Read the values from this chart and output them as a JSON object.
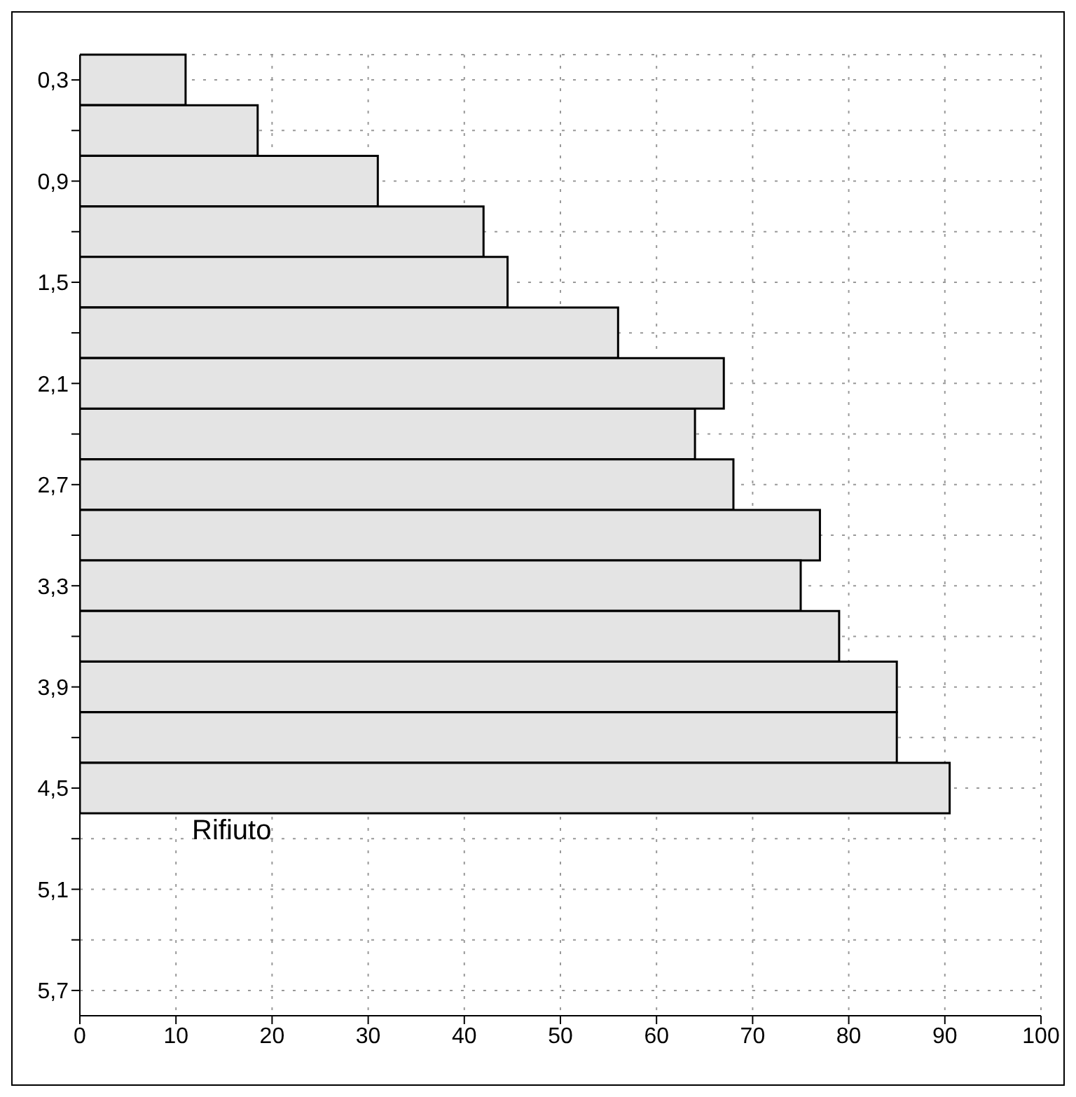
{
  "chart_data": {
    "type": "bar",
    "orientation": "horizontal",
    "categories": [
      "0,3",
      null,
      "0,9",
      null,
      "1,5",
      null,
      "2,1",
      null,
      "2,7",
      null,
      "3,3",
      null,
      "3,9",
      null,
      "4,5",
      null,
      "5,1",
      null,
      "5,7"
    ],
    "values": [
      11,
      18.5,
      31,
      42,
      44.5,
      56,
      67,
      64,
      68,
      77,
      75,
      79,
      85,
      85,
      90.5,
      null,
      null,
      null,
      null
    ],
    "color": "#e4e4e4",
    "xlim": [
      0,
      100
    ],
    "xticks": [
      0,
      10,
      20,
      30,
      40,
      50,
      60,
      70,
      80,
      90,
      100
    ],
    "grid": true,
    "annotations": [
      "Rifiuto"
    ]
  }
}
